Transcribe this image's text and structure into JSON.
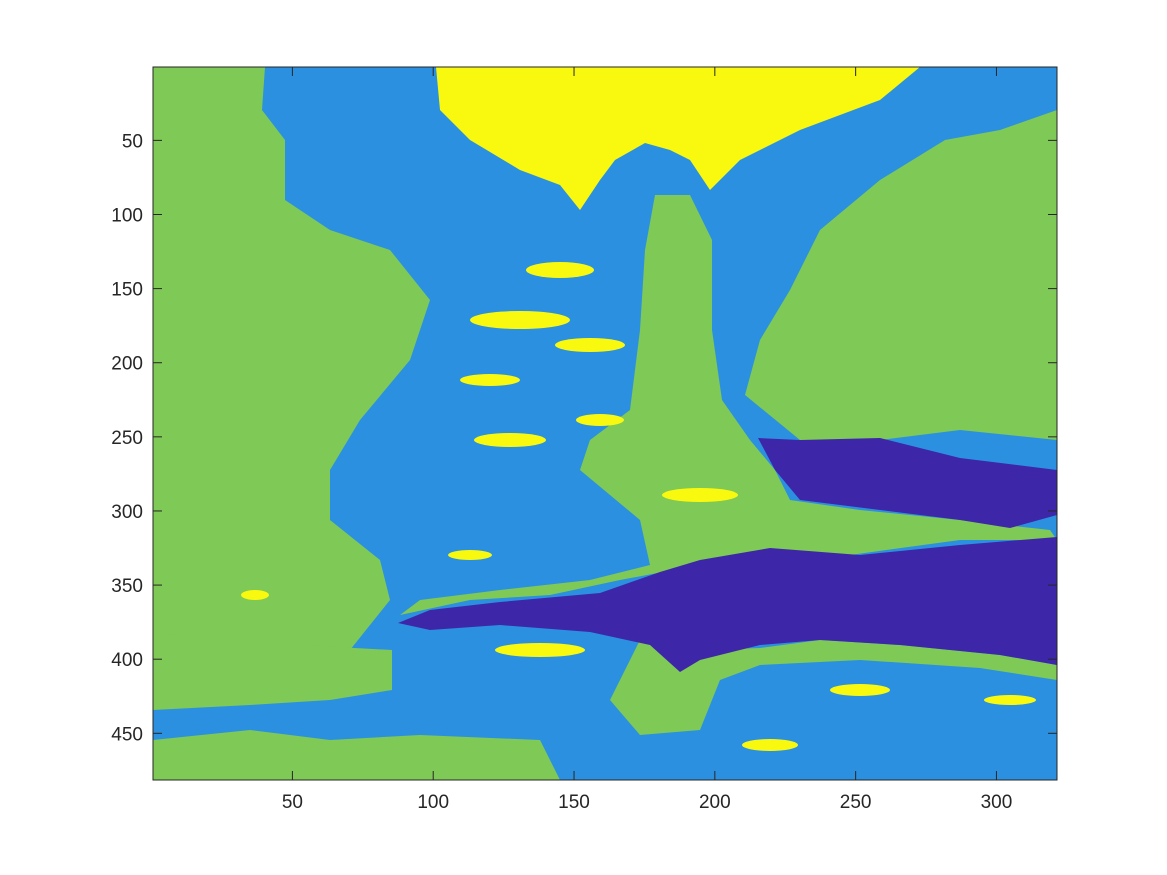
{
  "chart_data": {
    "type": "heatmap",
    "title": "",
    "xlabel": "",
    "ylabel": "",
    "x_ticks": [
      50,
      100,
      150,
      200,
      250,
      300
    ],
    "y_ticks": [
      50,
      100,
      150,
      200,
      250,
      300,
      350,
      400,
      450
    ],
    "xlim": [
      0.5,
      321.5
    ],
    "ylim": [
      481.5,
      0.5
    ],
    "y_direction": "reversed",
    "grid": false,
    "colorbar": false,
    "colormap": "parula",
    "levels": [
      {
        "level": 1,
        "color": "#3e26a8"
      },
      {
        "level": 2,
        "color": "#2b90e0"
      },
      {
        "level": 3,
        "color": "#7fc956"
      },
      {
        "level": 4,
        "color": "#f9f90f"
      }
    ],
    "regions": [
      {
        "level": 4,
        "label": "top-center bright region",
        "x_range": [
          100,
          275
        ],
        "y_range": [
          1,
          95
        ]
      },
      {
        "level": 2,
        "label": "upper-middle mixed band",
        "x_range": [
          85,
          280
        ],
        "y_range": [
          1,
          300
        ]
      },
      {
        "level": 3,
        "label": "left band",
        "x_range": [
          1,
          95
        ],
        "y_range": [
          1,
          481
        ]
      },
      {
        "level": 3,
        "label": "right band",
        "x_range": [
          250,
          321
        ],
        "y_range": [
          60,
          260
        ]
      },
      {
        "level": 3,
        "label": "central vertical stem",
        "x_range": [
          160,
          225
        ],
        "y_range": [
          90,
          330
        ]
      },
      {
        "level": 1,
        "label": "upper right lobe",
        "x_range": [
          216,
          321
        ],
        "y_range": [
          252,
          322
        ]
      },
      {
        "level": 1,
        "label": "lower horizontal lobe",
        "x_range": [
          88,
          321
        ],
        "y_range": [
          328,
          410
        ]
      },
      {
        "level": 2,
        "label": "bottom band",
        "x_range": [
          1,
          321
        ],
        "y_range": [
          395,
          481
        ]
      }
    ]
  }
}
